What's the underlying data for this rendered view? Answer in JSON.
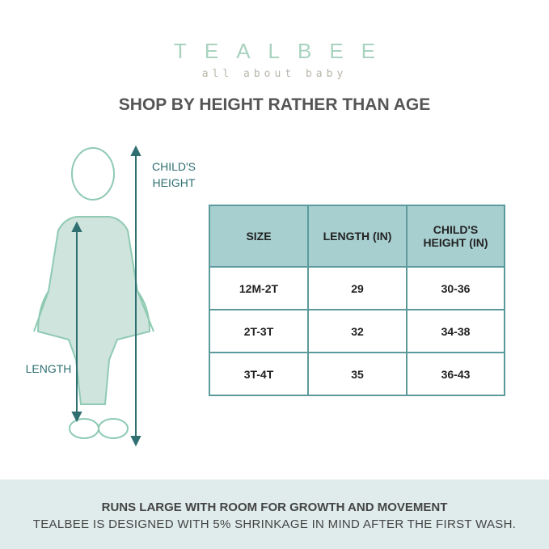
{
  "brand": {
    "logo": "TEALBEE",
    "tagline": "all about baby"
  },
  "title": "SHOP BY HEIGHT RATHER THAN AGE",
  "figure": {
    "height_label_1": "CHILD'S",
    "height_label_2": "HEIGHT",
    "length_label": "LENGTH"
  },
  "table": {
    "headers": [
      "SIZE",
      "LENGTH (IN)",
      "CHILD'S HEIGHT (IN)"
    ],
    "rows": [
      [
        "12M-2T",
        "29",
        "30-36"
      ],
      [
        "2T-3T",
        "32",
        "34-38"
      ],
      [
        "3T-4T",
        "35",
        "36-43"
      ]
    ]
  },
  "footer": {
    "line1": "RUNS LARGE WITH ROOM FOR GROWTH AND MOVEMENT",
    "line2": "TEALBEE IS DESIGNED WITH 5% SHRINKAGE IN MIND AFTER THE FIRST WASH."
  },
  "colors": {
    "teal": "#2f6f72",
    "header_bg": "#a8cfd0",
    "band": "#dfeceb",
    "logo": "#a9d3bf"
  }
}
